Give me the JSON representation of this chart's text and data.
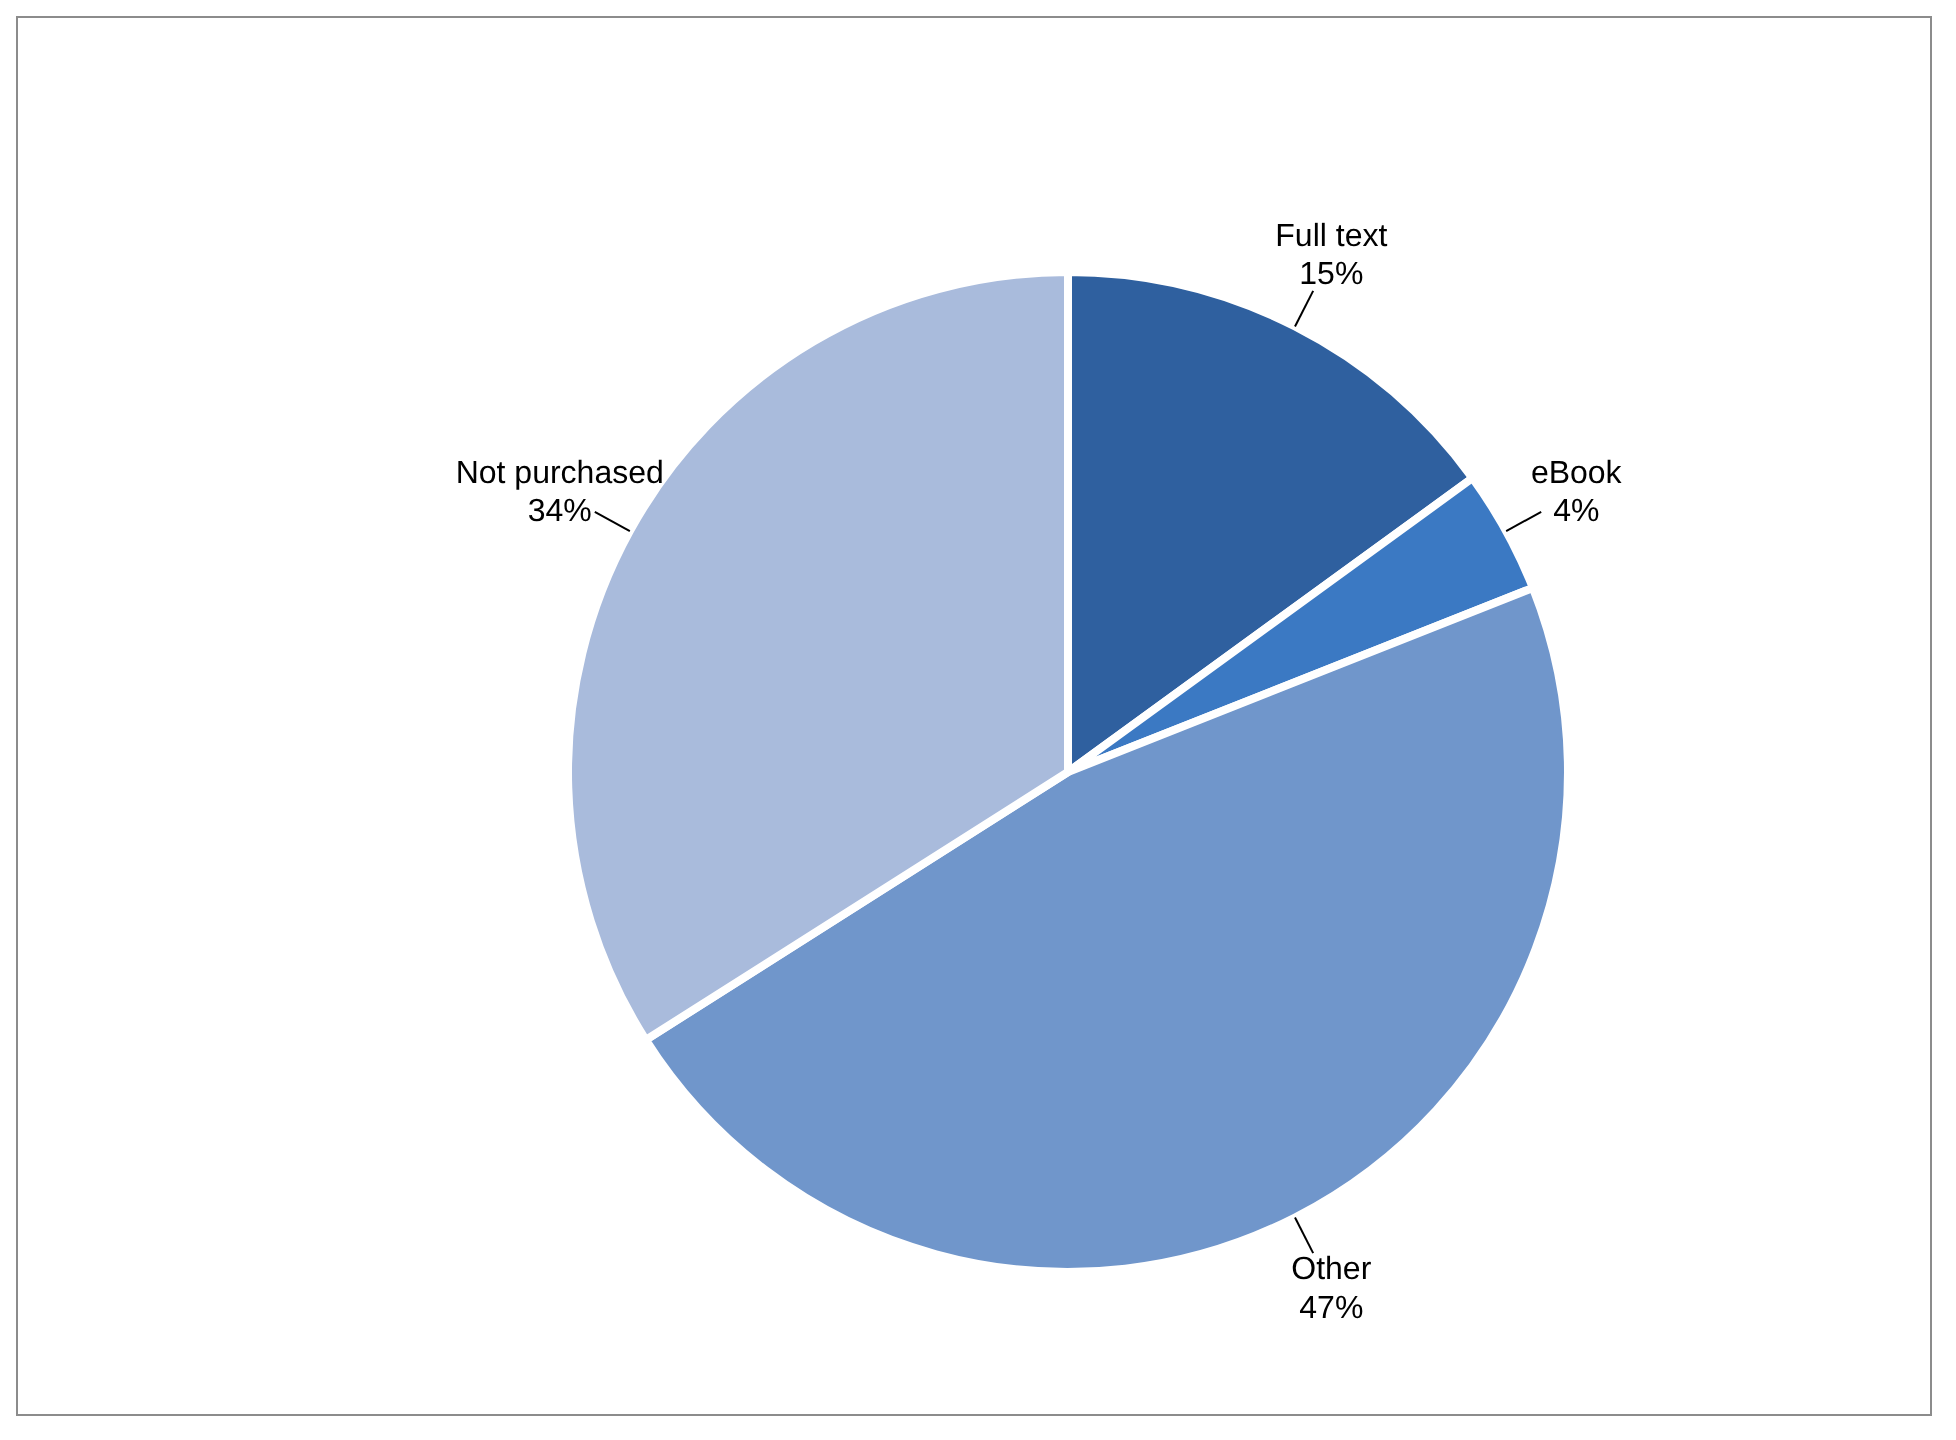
{
  "chart_data": {
    "type": "pie",
    "categories": [
      "Full text",
      "eBook",
      "Other",
      "Not purchased"
    ],
    "values": [
      15,
      4,
      47,
      34
    ],
    "value_labels": [
      "15%",
      "4%",
      "47%",
      "34%"
    ],
    "colors": [
      "#2f609f",
      "#3b79c3",
      "#7096cb",
      "#a9bbdc"
    ],
    "legend": false
  }
}
